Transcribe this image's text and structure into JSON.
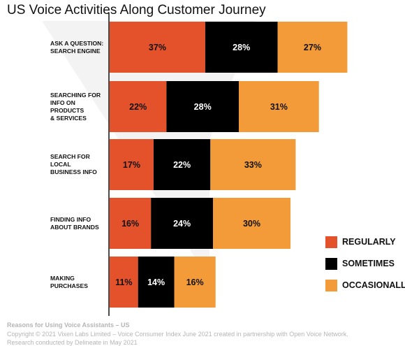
{
  "colors": {
    "regularly": "#E4522C",
    "sometimes": "#000000",
    "occasionally": "#F29B38",
    "watermark": "#F3F3F3"
  },
  "chart_data": {
    "type": "bar",
    "orientation": "horizontal",
    "stacked": true,
    "title": "US Voice Activities Along Customer Journey",
    "categories": [
      "ASK A QUESTION:\nSEARCH ENGINE",
      "SEARCHING FOR\nINFO ON PRODUCTS\n& SERVICES",
      "SEARCH FOR LOCAL\nBUSINESS INFO",
      "FINDING INFO\nABOUT BRANDS",
      "MAKING\nPURCHASES"
    ],
    "series": [
      {
        "name": "REGULARLY",
        "values": [
          37,
          22,
          17,
          16,
          11
        ],
        "color": "#E4522C"
      },
      {
        "name": "SOMETIMES",
        "values": [
          28,
          28,
          22,
          24,
          14
        ],
        "color": "#000000"
      },
      {
        "name": "OCCASIONALLY",
        "values": [
          27,
          31,
          33,
          30,
          16
        ],
        "color": "#F29B38"
      }
    ],
    "value_suffix": "%",
    "legend_position": "right",
    "grid": false
  },
  "footer": {
    "line1": "Reasons for Using Voice Assistants – US",
    "line2": "Copyright © 2021 Vixen Labs Limited – Voice Consumer Index June 2021 created in partnership with Open Voice Network.",
    "line3": "Research conducted by Delineate in May 2021"
  }
}
